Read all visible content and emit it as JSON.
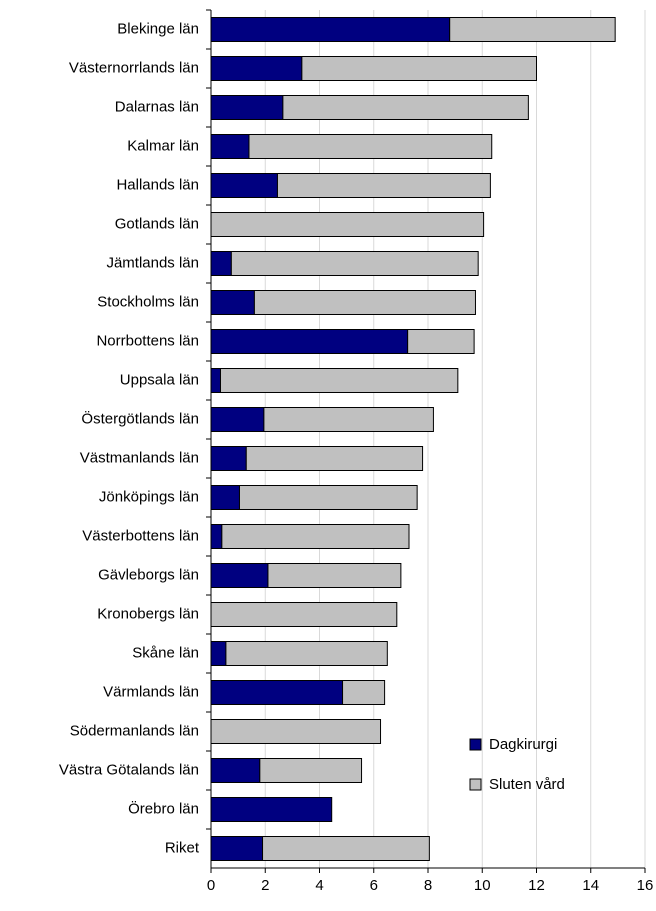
{
  "chart_data": {
    "type": "bar",
    "orientation": "horizontal",
    "stacked": true,
    "categories": [
      "Blekinge län",
      "Västernorrlands län",
      "Dalarnas län",
      "Kalmar län",
      "Hallands län",
      "Gotlands län",
      "Jämtlands län",
      "Stockholms län",
      "Norrbottens län",
      "Uppsala län",
      "Östergötlands län",
      "Västmanlands län",
      "Jönköpings län",
      "Västerbottens län",
      "Gävleborgs län",
      "Kronobergs län",
      "Skåne län",
      "Värmlands län",
      "Södermanlands län",
      "Västra Götalands län",
      "Örebro län",
      "Riket"
    ],
    "series": [
      {
        "name": "Dagkirurgi",
        "color": "#000080",
        "values": [
          8.8,
          3.35,
          2.65,
          1.4,
          2.45,
          0,
          0.75,
          1.6,
          7.25,
          0.35,
          1.95,
          1.3,
          1.05,
          0.4,
          2.1,
          0,
          0.55,
          4.85,
          0,
          1.8,
          4.45,
          1.9
        ]
      },
      {
        "name": "Sluten vård",
        "color": "#c0c0c0",
        "values": [
          6.1,
          8.65,
          9.05,
          8.95,
          7.85,
          10.05,
          9.1,
          8.15,
          2.45,
          8.75,
          6.25,
          6.5,
          6.55,
          6.9,
          4.9,
          6.85,
          5.95,
          1.55,
          6.25,
          3.75,
          0,
          6.15
        ]
      }
    ],
    "xlim": [
      0,
      16
    ],
    "xticks": [
      0,
      2,
      4,
      6,
      8,
      10,
      12,
      14,
      16
    ],
    "grid": true,
    "legend": "lower right"
  }
}
